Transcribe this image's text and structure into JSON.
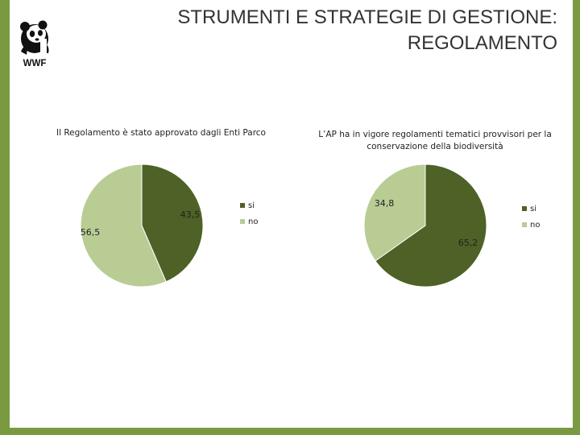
{
  "slide": {
    "title_lines": [
      "STRUMENTI E STRATEGIE DI GESTIONE:",
      "REGOLAMENTO"
    ],
    "logo_text": "WWF",
    "frame_color": "#7a9a41"
  },
  "chart_data": [
    {
      "type": "pie",
      "title": "Il Regolamento è stato approvato dagli Enti Parco",
      "categories": [
        "si",
        "no"
      ],
      "values": [
        43.5,
        56.5
      ],
      "value_labels": [
        "43,5",
        "56,5"
      ],
      "colors": [
        "#4e6126",
        "#b8cc94"
      ],
      "legend": "right"
    },
    {
      "type": "pie",
      "title": "L’AP ha in vigore regolamenti tematici provvisori per la conservazione della biodiversità",
      "categories": [
        "si",
        "no"
      ],
      "values": [
        65.2,
        34.8
      ],
      "value_labels": [
        "65,2",
        "34,8"
      ],
      "colors": [
        "#4e6126",
        "#b8cc94"
      ],
      "legend": "right"
    }
  ]
}
